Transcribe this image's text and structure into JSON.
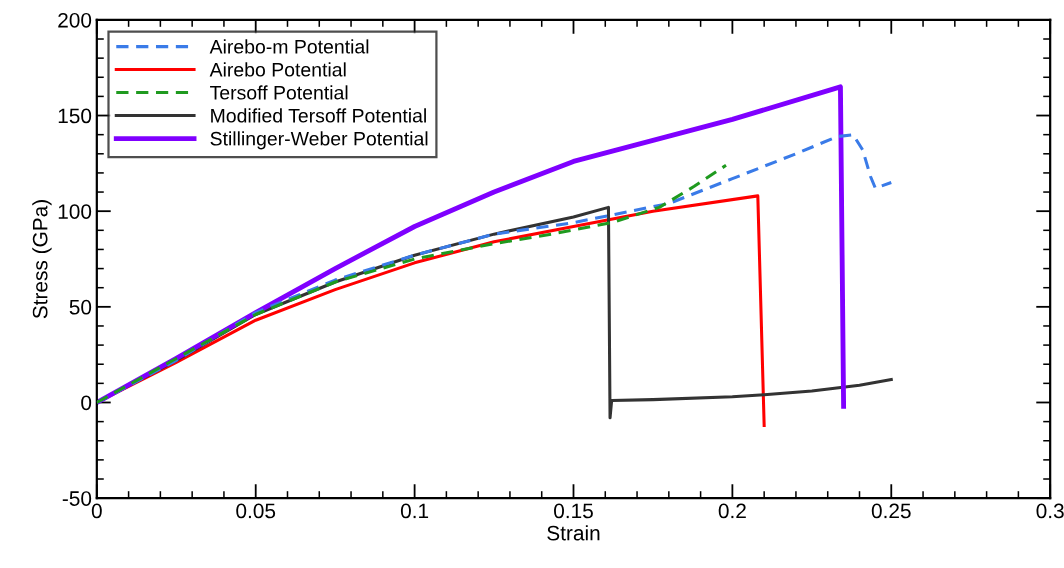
{
  "chart_data": {
    "type": "line",
    "xlabel": "Strain",
    "ylabel": "Stress (GPa)",
    "xlim": [
      0,
      0.3
    ],
    "xticks": [
      0,
      0.05,
      0.1,
      0.15,
      0.2,
      0.25,
      0.3
    ],
    "ylim": [
      -50,
      200
    ],
    "yticks": [
      -50,
      0,
      50,
      100,
      150,
      200
    ],
    "grid": false,
    "legend": "top left",
    "marker": "none",
    "series": [
      {
        "name": "Airebo-m Potential",
        "color": "#3a7be8",
        "line_style": "dashed",
        "x": [
          0,
          0.025,
          0.05,
          0.075,
          0.1,
          0.125,
          0.15,
          0.18,
          0.2,
          0.22,
          0.233,
          0.238,
          0.241,
          0.2435,
          0.245,
          0.25
        ],
        "values": [
          0,
          22,
          47,
          64,
          77,
          88,
          94,
          104,
          117,
          130,
          139,
          140,
          132,
          118,
          112,
          115
        ]
      },
      {
        "name": "Airebo Potential",
        "color": "#ff0000",
        "line_style": "solid",
        "x": [
          0,
          0.025,
          0.05,
          0.075,
          0.1,
          0.125,
          0.15,
          0.175,
          0.208,
          0.21
        ],
        "values": [
          0,
          21,
          43,
          59,
          73,
          84,
          92,
          100,
          108,
          -12
        ]
      },
      {
        "name": "Tersoff Potential",
        "color": "#1f9a1f",
        "line_style": "dashed",
        "x": [
          0,
          0.025,
          0.05,
          0.075,
          0.1,
          0.125,
          0.143,
          0.162,
          0.177,
          0.188,
          0.198
        ],
        "values": [
          0,
          23,
          46,
          63,
          75,
          83,
          88,
          94,
          102,
          113,
          124
        ]
      },
      {
        "name": "Modified Tersoff Potential",
        "color": "#333333",
        "line_style": "solid",
        "x": [
          0,
          0.025,
          0.05,
          0.075,
          0.1,
          0.125,
          0.15,
          0.161,
          0.1615,
          0.162,
          0.175,
          0.2,
          0.21,
          0.225,
          0.24,
          0.25
        ],
        "values": [
          0,
          22,
          46,
          63,
          77,
          88,
          97,
          102,
          -8,
          1,
          1.5,
          3,
          4,
          6,
          9,
          12
        ]
      },
      {
        "name": "Stillinger-Weber Potential",
        "color": "#7f00ff",
        "line_style": "solid",
        "x": [
          0,
          0.025,
          0.05,
          0.075,
          0.1,
          0.125,
          0.15,
          0.175,
          0.2,
          0.234,
          0.235
        ],
        "values": [
          0,
          23,
          47,
          70,
          92,
          110,
          126,
          137,
          148,
          165,
          -2
        ]
      }
    ]
  }
}
